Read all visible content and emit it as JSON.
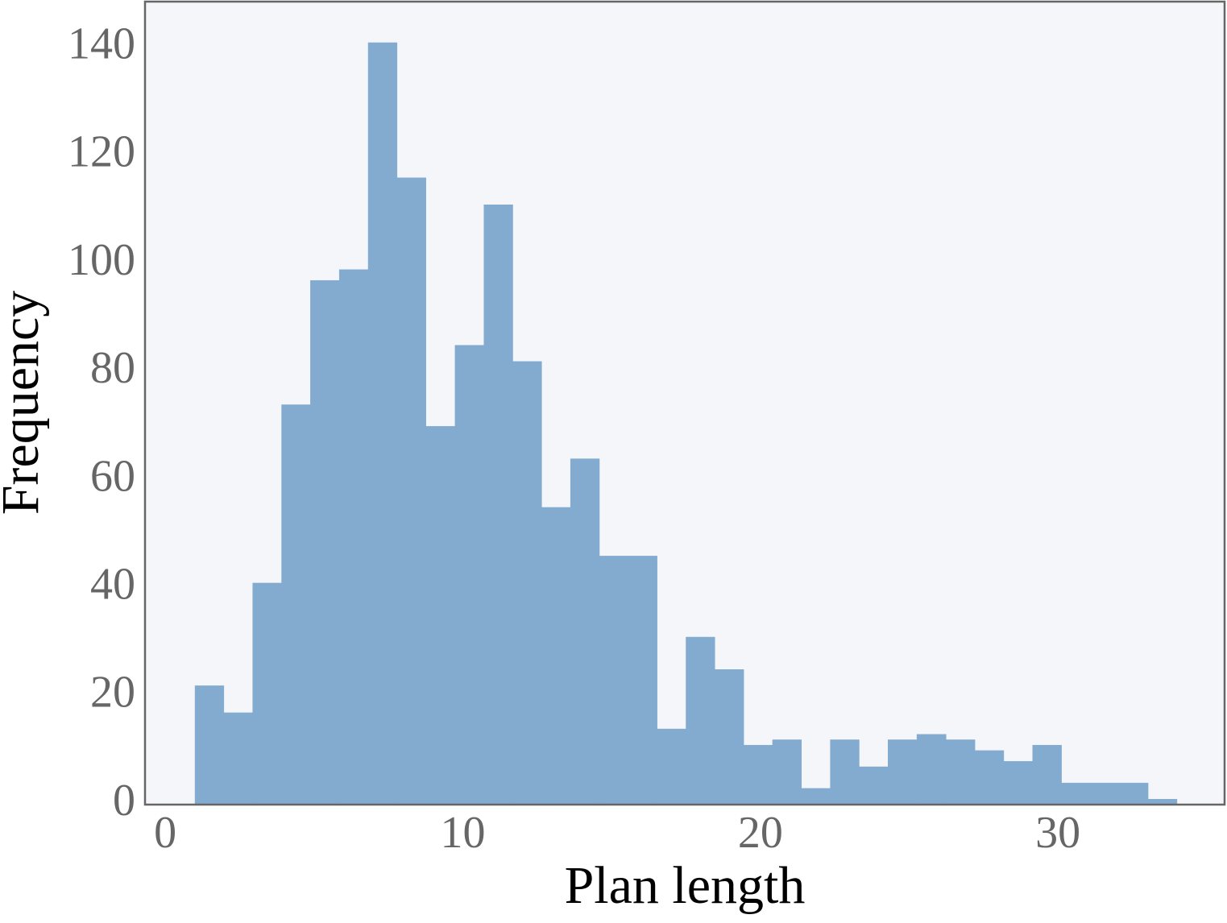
{
  "chart_data": {
    "type": "histogram",
    "xlabel": "Plan length",
    "ylabel": "Frequency",
    "bins": [
      1,
      1.97,
      2.94,
      3.91,
      4.88,
      5.85,
      6.82,
      7.79,
      8.76,
      9.74,
      10.71,
      11.68,
      12.65,
      13.62,
      14.59,
      15.56,
      16.53,
      17.5,
      18.47,
      19.44,
      20.41,
      21.38,
      22.35,
      23.32,
      24.29,
      25.26,
      26.24,
      27.21,
      28.18,
      29.15,
      30.12,
      31.09,
      32.06,
      33.03,
      34
    ],
    "counts": [
      22,
      17,
      41,
      74,
      97,
      99,
      141,
      116,
      70,
      85,
      111,
      82,
      55,
      64,
      46,
      46,
      14,
      31,
      25,
      11,
      12,
      3,
      12,
      7,
      12,
      13,
      12,
      10,
      8,
      11,
      4,
      4,
      4,
      1
    ],
    "color": "#83abd0",
    "xlim": [
      -0.68,
      35.6
    ],
    "xticks": [
      0,
      10,
      20,
      30
    ],
    "ylim": [
      0,
      148.6
    ],
    "yticks": [
      0,
      20,
      40,
      60,
      80,
      100,
      120,
      140
    ],
    "grid": false
  }
}
